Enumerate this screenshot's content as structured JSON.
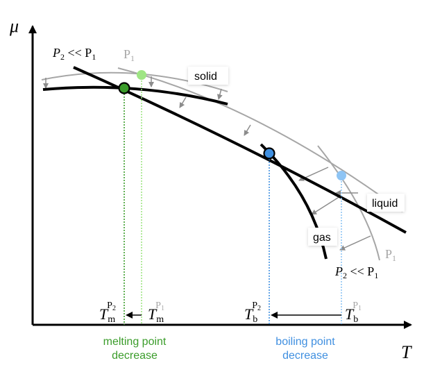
{
  "axes": {
    "y_symbol": "μ",
    "x_symbol": "T"
  },
  "labels": {
    "p2_ll_p1_top": {
      "p": "P",
      "sub": "2",
      "rel": " << P",
      "sub2": "1"
    },
    "p1_top": {
      "p": "P",
      "sub": "1"
    },
    "p1_right": {
      "p": "P",
      "sub": "1"
    },
    "p2_ll_p1_right": {
      "p": "P",
      "sub": "2",
      "rel": " << P",
      "sub2": "1"
    },
    "solid": "solid",
    "liquid": "liquid",
    "gas": "gas"
  },
  "temps": {
    "tm_p2": {
      "base": "T",
      "sub": "m",
      "sup": "P",
      "supsub": "2"
    },
    "tm_p1": {
      "base": "T",
      "sub": "m",
      "sup": "P",
      "supsub": "1"
    },
    "tb_p2": {
      "base": "T",
      "sub": "b",
      "sup": "P",
      "supsub": "2"
    },
    "tb_p1": {
      "base": "T",
      "sub": "b",
      "sup": "P",
      "supsub": "1"
    }
  },
  "captions": {
    "melting_line1": "melting point",
    "melting_line2": "decrease",
    "boiling_line1": "boiling point",
    "boiling_line2": "decrease"
  },
  "colors": {
    "curve_p2": "#000000",
    "curve_p1": "#a6a6a6",
    "melting_p2": "#3a9c2a",
    "melting_p1": "#9ee584",
    "boiling_p2": "#3f8fe0",
    "boiling_p1": "#8ec4f4",
    "melting_caption": "#3a9c2a",
    "boiling_caption": "#3f8fe0"
  }
}
